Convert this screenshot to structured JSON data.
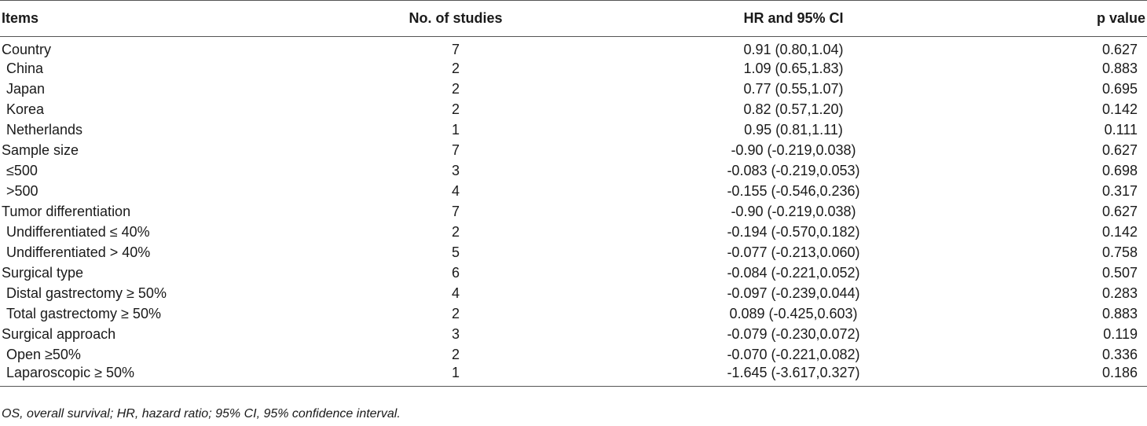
{
  "table": {
    "headers": {
      "items": "Items",
      "studies": "No. of studies",
      "hr": "HR and 95% CI",
      "p": "p value"
    },
    "rows": [
      {
        "item": "Country",
        "sub": false,
        "studies": "7",
        "hr": "0.91 (0.80,1.04)",
        "p": "0.627"
      },
      {
        "item": "China",
        "sub": true,
        "studies": "2",
        "hr": "1.09 (0.65,1.83)",
        "p": "0.883"
      },
      {
        "item": "Japan",
        "sub": true,
        "studies": "2",
        "hr": "0.77 (0.55,1.07)",
        "p": "0.695"
      },
      {
        "item": "Korea",
        "sub": true,
        "studies": "2",
        "hr": "0.82 (0.57,1.20)",
        "p": "0.142"
      },
      {
        "item": "Netherlands",
        "sub": true,
        "studies": "1",
        "hr": "0.95 (0.81,1.11)",
        "p": "0.111"
      },
      {
        "item": "Sample size",
        "sub": false,
        "studies": "7",
        "hr": "-0.90 (-0.219,0.038)",
        "p": "0.627"
      },
      {
        "item": "≤500",
        "sub": true,
        "studies": "3",
        "hr": "-0.083 (-0.219,0.053)",
        "p": "0.698"
      },
      {
        "item": ">500",
        "sub": true,
        "studies": "4",
        "hr": "-0.155 (-0.546,0.236)",
        "p": "0.317"
      },
      {
        "item": "Tumor differentiation",
        "sub": false,
        "studies": "7",
        "hr": "-0.90 (-0.219,0.038)",
        "p": "0.627"
      },
      {
        "item": "Undifferentiated ≤ 40%",
        "sub": true,
        "studies": "2",
        "hr": "-0.194 (-0.570,0.182)",
        "p": "0.142"
      },
      {
        "item": "Undifferentiated > 40%",
        "sub": true,
        "studies": "5",
        "hr": "-0.077 (-0.213,0.060)",
        "p": "0.758"
      },
      {
        "item": "Surgical type",
        "sub": false,
        "studies": "6",
        "hr": "-0.084 (-0.221,0.052)",
        "p": "0.507"
      },
      {
        "item": "Distal gastrectomy ≥ 50%",
        "sub": true,
        "studies": "4",
        "hr": "-0.097 (-0.239,0.044)",
        "p": "0.283"
      },
      {
        "item": "Total gastrectomy ≥ 50%",
        "sub": true,
        "studies": "2",
        "hr": "0.089 (-0.425,0.603)",
        "p": "0.883"
      },
      {
        "item": "Surgical approach",
        "sub": false,
        "studies": "3",
        "hr": "-0.079 (-0.230,0.072)",
        "p": "0.119"
      },
      {
        "item": "Open ≥50%",
        "sub": true,
        "studies": "2",
        "hr": "-0.070 (-0.221,0.082)",
        "p": "0.336"
      },
      {
        "item": "Laparoscopic ≥ 50%",
        "sub": true,
        "studies": "1",
        "hr": "-1.645 (-3.617,0.327)",
        "p": "0.186"
      }
    ]
  },
  "footnote": "OS, overall survival; HR, hazard ratio; 95% CI, 95% confidence interval."
}
